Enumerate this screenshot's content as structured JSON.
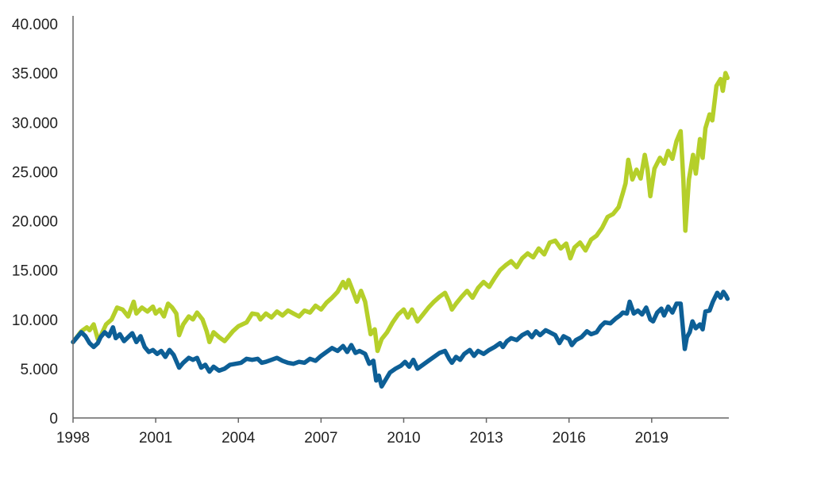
{
  "chart_data": {
    "type": "line",
    "title": "",
    "xlabel": "",
    "ylabel": "",
    "xlim": [
      1998,
      2021.8
    ],
    "ylim": [
      0,
      40000
    ],
    "grid": false,
    "legend": "none",
    "x_ticks": [
      1998,
      2001,
      2004,
      2007,
      2010,
      2013,
      2016,
      2019
    ],
    "x_tick_labels": [
      "1998",
      "2001",
      "2004",
      "2007",
      "2010",
      "2013",
      "2016",
      "2019"
    ],
    "y_ticks": [
      0,
      5000,
      10000,
      15000,
      20000,
      25000,
      30000,
      35000,
      40000
    ],
    "y_tick_labels": [
      "0",
      "5.000",
      "10.000",
      "15.000",
      "20.000",
      "25.000",
      "30.000",
      "35.000",
      "40.000"
    ],
    "series": [
      {
        "color": "#b5cf2a",
        "points": [
          [
            1998.0,
            7700
          ],
          [
            1998.3,
            8800
          ],
          [
            1998.5,
            9200
          ],
          [
            1998.6,
            8900
          ],
          [
            1998.75,
            9500
          ],
          [
            1998.9,
            8000
          ],
          [
            1999.0,
            8300
          ],
          [
            1999.2,
            9500
          ],
          [
            1999.4,
            10000
          ],
          [
            1999.6,
            11200
          ],
          [
            1999.8,
            11000
          ],
          [
            2000.0,
            10300
          ],
          [
            2000.2,
            11800
          ],
          [
            2000.3,
            10600
          ],
          [
            2000.5,
            11200
          ],
          [
            2000.7,
            10800
          ],
          [
            2000.9,
            11300
          ],
          [
            2001.0,
            10600
          ],
          [
            2001.15,
            11000
          ],
          [
            2001.3,
            10300
          ],
          [
            2001.45,
            11600
          ],
          [
            2001.6,
            11200
          ],
          [
            2001.75,
            10600
          ],
          [
            2001.85,
            8400
          ],
          [
            2002.0,
            9500
          ],
          [
            2002.2,
            10300
          ],
          [
            2002.35,
            10000
          ],
          [
            2002.5,
            10700
          ],
          [
            2002.7,
            10000
          ],
          [
            2002.85,
            8800
          ],
          [
            2002.95,
            7700
          ],
          [
            2003.1,
            8700
          ],
          [
            2003.3,
            8200
          ],
          [
            2003.5,
            7800
          ],
          [
            2003.8,
            8800
          ],
          [
            2004.0,
            9300
          ],
          [
            2004.3,
            9700
          ],
          [
            2004.5,
            10600
          ],
          [
            2004.7,
            10500
          ],
          [
            2004.8,
            10000
          ],
          [
            2005.0,
            10600
          ],
          [
            2005.2,
            10200
          ],
          [
            2005.4,
            10800
          ],
          [
            2005.6,
            10400
          ],
          [
            2005.8,
            10900
          ],
          [
            2006.0,
            10600
          ],
          [
            2006.2,
            10300
          ],
          [
            2006.4,
            10900
          ],
          [
            2006.6,
            10700
          ],
          [
            2006.8,
            11400
          ],
          [
            2007.0,
            11000
          ],
          [
            2007.2,
            11700
          ],
          [
            2007.4,
            12200
          ],
          [
            2007.6,
            12800
          ],
          [
            2007.8,
            13800
          ],
          [
            2007.9,
            13200
          ],
          [
            2008.0,
            14000
          ],
          [
            2008.1,
            13300
          ],
          [
            2008.3,
            11800
          ],
          [
            2008.45,
            12900
          ],
          [
            2008.6,
            11800
          ],
          [
            2008.8,
            8500
          ],
          [
            2008.95,
            9000
          ],
          [
            2009.05,
            6800
          ],
          [
            2009.2,
            8000
          ],
          [
            2009.4,
            8700
          ],
          [
            2009.6,
            9700
          ],
          [
            2009.8,
            10500
          ],
          [
            2010.0,
            11000
          ],
          [
            2010.15,
            10200
          ],
          [
            2010.3,
            11000
          ],
          [
            2010.5,
            9800
          ],
          [
            2010.7,
            10500
          ],
          [
            2010.9,
            11200
          ],
          [
            2011.1,
            11800
          ],
          [
            2011.3,
            12300
          ],
          [
            2011.5,
            12700
          ],
          [
            2011.65,
            11800
          ],
          [
            2011.75,
            11000
          ],
          [
            2011.9,
            11600
          ],
          [
            2012.1,
            12300
          ],
          [
            2012.3,
            12900
          ],
          [
            2012.5,
            12200
          ],
          [
            2012.7,
            13200
          ],
          [
            2012.9,
            13800
          ],
          [
            2013.1,
            13300
          ],
          [
            2013.3,
            14200
          ],
          [
            2013.5,
            15000
          ],
          [
            2013.7,
            15500
          ],
          [
            2013.9,
            15900
          ],
          [
            2014.1,
            15300
          ],
          [
            2014.3,
            16200
          ],
          [
            2014.5,
            16700
          ],
          [
            2014.7,
            16300
          ],
          [
            2014.9,
            17200
          ],
          [
            2015.1,
            16600
          ],
          [
            2015.3,
            17800
          ],
          [
            2015.5,
            18000
          ],
          [
            2015.7,
            17200
          ],
          [
            2015.9,
            17700
          ],
          [
            2016.05,
            16200
          ],
          [
            2016.2,
            17300
          ],
          [
            2016.4,
            17800
          ],
          [
            2016.6,
            17000
          ],
          [
            2016.8,
            18100
          ],
          [
            2017.0,
            18500
          ],
          [
            2017.2,
            19300
          ],
          [
            2017.4,
            20400
          ],
          [
            2017.6,
            20700
          ],
          [
            2017.8,
            21400
          ],
          [
            2017.95,
            22800
          ],
          [
            2018.05,
            23800
          ],
          [
            2018.15,
            26200
          ],
          [
            2018.3,
            24200
          ],
          [
            2018.45,
            25200
          ],
          [
            2018.6,
            24300
          ],
          [
            2018.75,
            26700
          ],
          [
            2018.85,
            25200
          ],
          [
            2018.95,
            22500
          ],
          [
            2019.1,
            25300
          ],
          [
            2019.3,
            26400
          ],
          [
            2019.45,
            25800
          ],
          [
            2019.6,
            27100
          ],
          [
            2019.75,
            26300
          ],
          [
            2019.9,
            28100
          ],
          [
            2020.05,
            29100
          ],
          [
            2020.15,
            24200
          ],
          [
            2020.22,
            19000
          ],
          [
            2020.35,
            24200
          ],
          [
            2020.5,
            26700
          ],
          [
            2020.6,
            24800
          ],
          [
            2020.75,
            28300
          ],
          [
            2020.85,
            26400
          ],
          [
            2020.95,
            29400
          ],
          [
            2021.1,
            30800
          ],
          [
            2021.2,
            30200
          ],
          [
            2021.35,
            33700
          ],
          [
            2021.5,
            34400
          ],
          [
            2021.58,
            33200
          ],
          [
            2021.68,
            35000
          ],
          [
            2021.75,
            34500
          ]
        ]
      },
      {
        "color": "#0d5f96",
        "points": [
          [
            1998.0,
            7700
          ],
          [
            1998.3,
            8700
          ],
          [
            1998.45,
            8300
          ],
          [
            1998.6,
            7600
          ],
          [
            1998.75,
            7200
          ],
          [
            1998.9,
            7600
          ],
          [
            1999.0,
            8200
          ],
          [
            1999.15,
            8700
          ],
          [
            1999.3,
            8300
          ],
          [
            1999.45,
            9200
          ],
          [
            1999.55,
            8100
          ],
          [
            1999.7,
            8500
          ],
          [
            1999.85,
            7800
          ],
          [
            2000.0,
            8200
          ],
          [
            2000.15,
            8600
          ],
          [
            2000.3,
            7700
          ],
          [
            2000.45,
            8300
          ],
          [
            2000.6,
            7200
          ],
          [
            2000.75,
            6700
          ],
          [
            2000.9,
            6900
          ],
          [
            2001.05,
            6500
          ],
          [
            2001.2,
            6800
          ],
          [
            2001.35,
            6200
          ],
          [
            2001.5,
            6900
          ],
          [
            2001.65,
            6400
          ],
          [
            2001.85,
            5100
          ],
          [
            2002.0,
            5600
          ],
          [
            2002.2,
            6100
          ],
          [
            2002.35,
            5900
          ],
          [
            2002.5,
            6100
          ],
          [
            2002.65,
            5100
          ],
          [
            2002.8,
            5400
          ],
          [
            2002.95,
            4700
          ],
          [
            2003.1,
            5200
          ],
          [
            2003.3,
            4800
          ],
          [
            2003.5,
            5000
          ],
          [
            2003.7,
            5400
          ],
          [
            2003.9,
            5500
          ],
          [
            2004.1,
            5600
          ],
          [
            2004.3,
            6000
          ],
          [
            2004.5,
            5900
          ],
          [
            2004.7,
            6000
          ],
          [
            2004.85,
            5600
          ],
          [
            2005.0,
            5700
          ],
          [
            2005.2,
            5900
          ],
          [
            2005.4,
            6100
          ],
          [
            2005.6,
            5800
          ],
          [
            2005.8,
            5600
          ],
          [
            2006.0,
            5500
          ],
          [
            2006.2,
            5700
          ],
          [
            2006.4,
            5600
          ],
          [
            2006.6,
            6000
          ],
          [
            2006.8,
            5800
          ],
          [
            2007.0,
            6300
          ],
          [
            2007.2,
            6700
          ],
          [
            2007.4,
            7100
          ],
          [
            2007.6,
            6800
          ],
          [
            2007.8,
            7300
          ],
          [
            2007.95,
            6700
          ],
          [
            2008.1,
            7400
          ],
          [
            2008.25,
            6600
          ],
          [
            2008.4,
            6800
          ],
          [
            2008.6,
            6500
          ],
          [
            2008.75,
            5500
          ],
          [
            2008.9,
            5800
          ],
          [
            2009.0,
            3800
          ],
          [
            2009.1,
            4300
          ],
          [
            2009.2,
            3200
          ],
          [
            2009.35,
            3900
          ],
          [
            2009.5,
            4600
          ],
          [
            2009.7,
            5000
          ],
          [
            2009.9,
            5300
          ],
          [
            2010.05,
            5700
          ],
          [
            2010.2,
            5200
          ],
          [
            2010.35,
            5900
          ],
          [
            2010.5,
            5000
          ],
          [
            2010.7,
            5400
          ],
          [
            2010.9,
            5800
          ],
          [
            2011.1,
            6200
          ],
          [
            2011.3,
            6600
          ],
          [
            2011.5,
            6800
          ],
          [
            2011.65,
            6000
          ],
          [
            2011.75,
            5600
          ],
          [
            2011.9,
            6200
          ],
          [
            2012.05,
            5900
          ],
          [
            2012.2,
            6500
          ],
          [
            2012.4,
            6900
          ],
          [
            2012.55,
            6300
          ],
          [
            2012.7,
            6800
          ],
          [
            2012.9,
            6500
          ],
          [
            2013.1,
            6900
          ],
          [
            2013.3,
            7200
          ],
          [
            2013.5,
            7600
          ],
          [
            2013.6,
            7200
          ],
          [
            2013.75,
            7800
          ],
          [
            2013.9,
            8100
          ],
          [
            2014.1,
            7900
          ],
          [
            2014.3,
            8400
          ],
          [
            2014.5,
            8700
          ],
          [
            2014.65,
            8200
          ],
          [
            2014.8,
            8800
          ],
          [
            2014.95,
            8400
          ],
          [
            2015.15,
            8900
          ],
          [
            2015.3,
            8700
          ],
          [
            2015.5,
            8400
          ],
          [
            2015.65,
            7600
          ],
          [
            2015.8,
            8300
          ],
          [
            2016.0,
            8000
          ],
          [
            2016.1,
            7400
          ],
          [
            2016.25,
            7900
          ],
          [
            2016.45,
            8200
          ],
          [
            2016.65,
            8800
          ],
          [
            2016.8,
            8500
          ],
          [
            2017.0,
            8700
          ],
          [
            2017.15,
            9300
          ],
          [
            2017.3,
            9700
          ],
          [
            2017.5,
            9600
          ],
          [
            2017.7,
            10100
          ],
          [
            2017.85,
            10400
          ],
          [
            2017.95,
            10700
          ],
          [
            2018.1,
            10600
          ],
          [
            2018.2,
            11800
          ],
          [
            2018.35,
            10600
          ],
          [
            2018.5,
            10900
          ],
          [
            2018.65,
            10500
          ],
          [
            2018.8,
            11200
          ],
          [
            2018.95,
            10000
          ],
          [
            2019.05,
            9800
          ],
          [
            2019.2,
            10700
          ],
          [
            2019.35,
            11100
          ],
          [
            2019.45,
            10400
          ],
          [
            2019.6,
            11300
          ],
          [
            2019.75,
            10700
          ],
          [
            2019.9,
            11600
          ],
          [
            2020.05,
            11600
          ],
          [
            2020.12,
            9500
          ],
          [
            2020.2,
            7000
          ],
          [
            2020.28,
            8200
          ],
          [
            2020.38,
            8700
          ],
          [
            2020.48,
            9800
          ],
          [
            2020.6,
            9100
          ],
          [
            2020.75,
            9500
          ],
          [
            2020.85,
            9000
          ],
          [
            2020.95,
            10800
          ],
          [
            2021.1,
            10900
          ],
          [
            2021.22,
            11800
          ],
          [
            2021.38,
            12700
          ],
          [
            2021.5,
            12200
          ],
          [
            2021.6,
            12800
          ],
          [
            2021.7,
            12400
          ],
          [
            2021.75,
            12100
          ]
        ]
      }
    ]
  }
}
